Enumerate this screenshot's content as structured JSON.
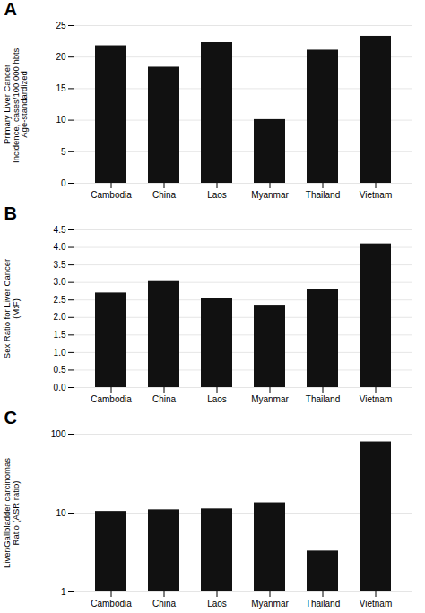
{
  "chart_data": [
    {
      "type": "bar",
      "title": "A",
      "categories": [
        "Cambodia",
        "China",
        "Laos",
        "Myanmar",
        "Thailand",
        "Vietnam"
      ],
      "values": [
        21.8,
        18.4,
        22.3,
        10.1,
        21.1,
        23.3
      ],
      "color": "#111111",
      "ylabel": "Primary Liver Cancer\nIncidence, cases/100,000 hbts,\nAge-standardized",
      "ylim": [
        0,
        25
      ],
      "yticks": [
        0,
        5,
        10,
        15,
        20,
        25
      ],
      "grid": true
    },
    {
      "type": "bar",
      "title": "B",
      "categories": [
        "Cambodia",
        "China",
        "Laos",
        "Myanmar",
        "Thailand",
        "Vietnam"
      ],
      "values": [
        2.7,
        3.05,
        2.55,
        2.35,
        2.8,
        4.1
      ],
      "color": "#111111",
      "ylabel": "Sex Ratio for Liver Cancer\n(M:F)",
      "ylim": [
        0,
        4.5
      ],
      "yticks": [
        {
          "value": 0,
          "label": "0.0"
        },
        0.5,
        {
          "value": 1.0,
          "label": "1.0"
        },
        1.5,
        {
          "value": 2.0,
          "label": "2.0"
        },
        2.5,
        {
          "value": 3.0,
          "label": "3.0"
        },
        3.5,
        {
          "value": 4.0,
          "label": "4.0"
        },
        4.5
      ],
      "grid": true
    },
    {
      "type": "bar",
      "title": "C",
      "categories": [
        "Cambodia",
        "China",
        "Laos",
        "Myanmar",
        "Thailand",
        "Vietnam"
      ],
      "values": [
        10.5,
        11.0,
        11.3,
        13.5,
        3.3,
        80.0
      ],
      "color": "#111111",
      "ylabel": "Liver/Gallbladder carcinomas\nRatio (ASR ratio)",
      "ylim": [
        1,
        100
      ],
      "yticks": [
        1,
        10,
        100
      ],
      "log": "y",
      "grid": true
    }
  ]
}
